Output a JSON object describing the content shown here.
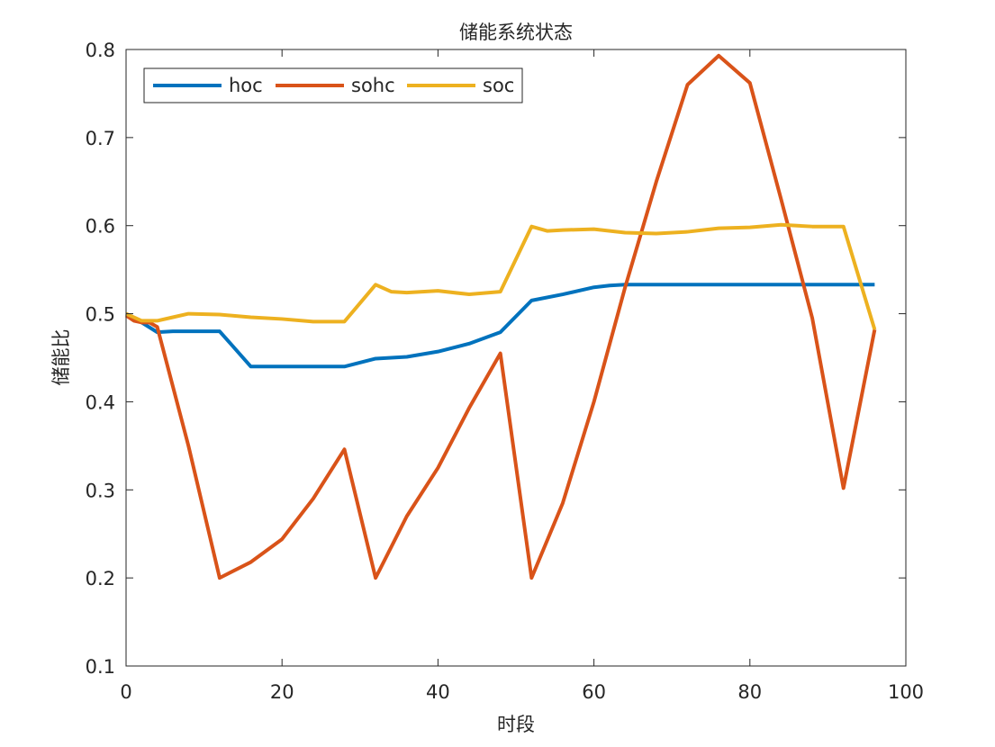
{
  "chart_data": {
    "type": "line",
    "title": "储能系统状态",
    "xlabel": "时段",
    "ylabel": "储能比",
    "xlim": [
      0,
      100
    ],
    "ylim": [
      0.1,
      0.8
    ],
    "xticks": [
      0,
      20,
      40,
      60,
      80,
      100
    ],
    "yticks": [
      0.1,
      0.2,
      0.3,
      0.4,
      0.5,
      0.6,
      0.7,
      0.8
    ],
    "xtick_labels": [
      "0",
      "20",
      "40",
      "60",
      "80",
      "100"
    ],
    "ytick_labels": [
      "0.1",
      "0.2",
      "0.3",
      "0.4",
      "0.5",
      "0.6",
      "0.7",
      "0.8"
    ],
    "grid": false,
    "legend_position": "top-left",
    "legend_orientation": "horizontal",
    "series": [
      {
        "name": "hoc",
        "color": "#0072BD",
        "x": [
          0,
          2,
          4,
          6,
          8,
          10,
          12,
          16,
          20,
          24,
          28,
          32,
          36,
          40,
          44,
          48,
          52,
          56,
          60,
          62,
          64,
          68,
          72,
          76,
          80,
          84,
          88,
          92,
          96
        ],
        "y": [
          0.5,
          0.49,
          0.479,
          0.48,
          0.48,
          0.48,
          0.48,
          0.44,
          0.44,
          0.44,
          0.44,
          0.449,
          0.451,
          0.457,
          0.466,
          0.479,
          0.515,
          0.522,
          0.53,
          0.532,
          0.533,
          0.533,
          0.533,
          0.533,
          0.533,
          0.533,
          0.533,
          0.533,
          0.533
        ]
      },
      {
        "name": "sohc",
        "color": "#D95319",
        "x": [
          0,
          1,
          2,
          3,
          4,
          8,
          12,
          16,
          20,
          24,
          28,
          32,
          36,
          40,
          44,
          48,
          52,
          56,
          60,
          64,
          68,
          72,
          76,
          80,
          84,
          88,
          92,
          96
        ],
        "y": [
          0.498,
          0.492,
          0.49,
          0.49,
          0.485,
          0.35,
          0.2,
          0.218,
          0.244,
          0.29,
          0.346,
          0.2,
          0.27,
          0.325,
          0.393,
          0.455,
          0.2,
          0.285,
          0.4,
          0.53,
          0.65,
          0.76,
          0.793,
          0.762,
          0.63,
          0.495,
          0.302,
          0.482
        ]
      },
      {
        "name": "soc",
        "color": "#EDB120",
        "x": [
          0,
          2,
          4,
          6,
          8,
          12,
          16,
          20,
          24,
          28,
          32,
          34,
          36,
          40,
          44,
          48,
          52,
          54,
          56,
          60,
          64,
          68,
          72,
          76,
          80,
          84,
          88,
          92,
          96
        ],
        "y": [
          0.5,
          0.492,
          0.492,
          0.496,
          0.5,
          0.499,
          0.496,
          0.494,
          0.491,
          0.491,
          0.533,
          0.525,
          0.524,
          0.526,
          0.522,
          0.525,
          0.599,
          0.594,
          0.595,
          0.596,
          0.592,
          0.591,
          0.593,
          0.597,
          0.598,
          0.601,
          0.599,
          0.599,
          0.482
        ]
      }
    ]
  }
}
